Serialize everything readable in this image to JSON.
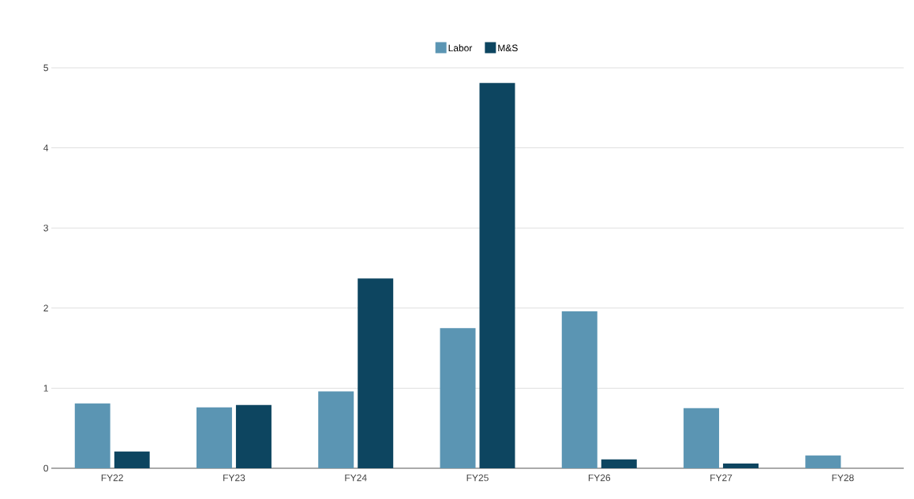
{
  "chart_data": {
    "type": "bar",
    "categories": [
      "FY22",
      "FY23",
      "FY24",
      "FY25",
      "FY26",
      "FY27",
      "FY28"
    ],
    "series": [
      {
        "name": "Labor",
        "color": "#5b95b3",
        "values": [
          0.81,
          0.76,
          0.96,
          1.75,
          1.96,
          0.75,
          0.16
        ]
      },
      {
        "name": "M&S",
        "color": "#0d4560",
        "values": [
          0.21,
          0.79,
          2.37,
          4.81,
          0.11,
          0.06,
          0
        ]
      }
    ],
    "ylim": [
      0,
      5
    ],
    "yticks": [
      0,
      1,
      2,
      3,
      4,
      5
    ],
    "grid": "y",
    "legend": "top"
  }
}
